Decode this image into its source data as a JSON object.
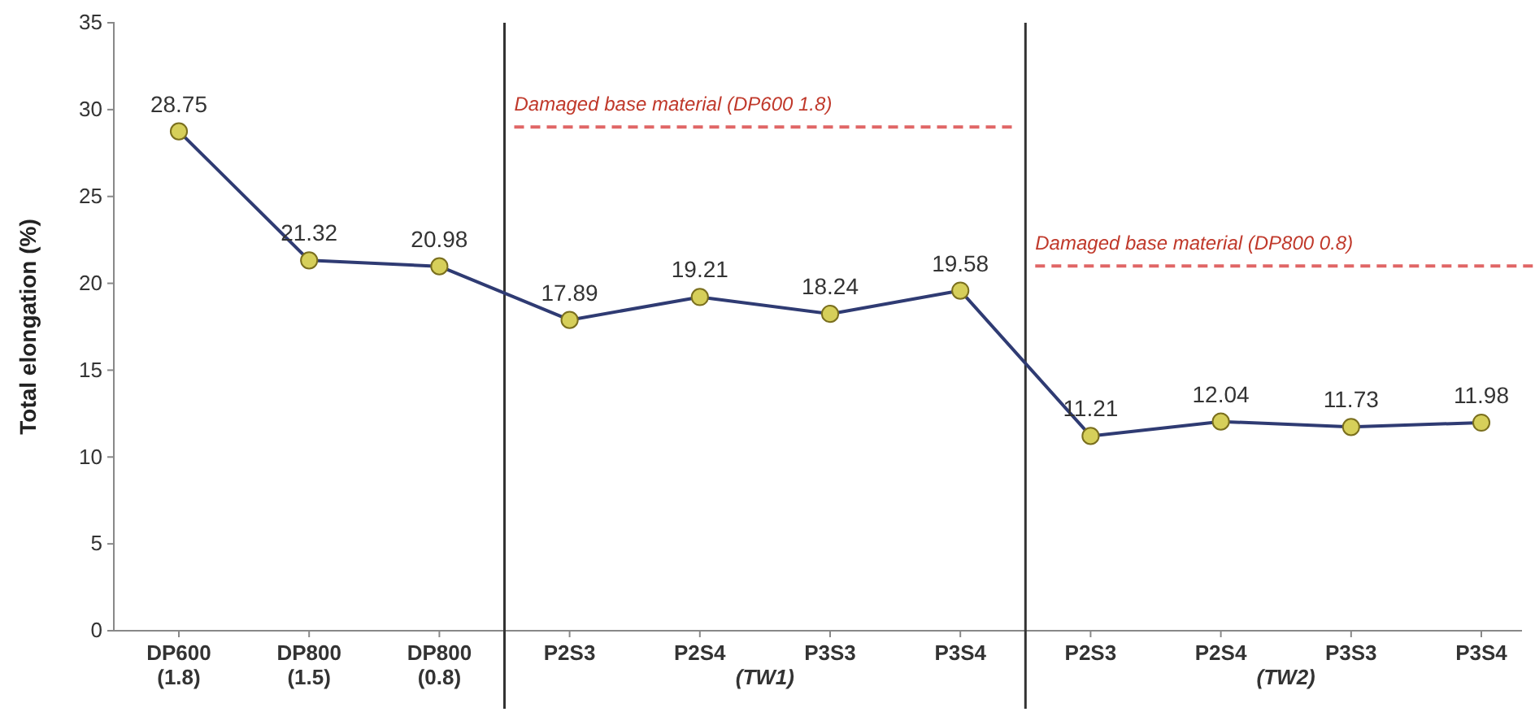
{
  "chart_data": {
    "type": "line",
    "ylabel": "Total elongation (%)",
    "categories": [
      "DP600\n(1.8)",
      "DP800\n(1.5)",
      "DP800\n(0.8)",
      "P2S3",
      "P2S4",
      "P3S3",
      "P3S4",
      "P2S3",
      "P2S4",
      "P3S3",
      "P3S4"
    ],
    "series": [
      {
        "color": "#2f3b73",
        "values": [
          28.75,
          21.32,
          20.98,
          17.89,
          19.21,
          18.24,
          19.58,
          11.21,
          12.04,
          11.73,
          11.98
        ]
      }
    ],
    "ylim": [
      0,
      35
    ],
    "yticks": [
      0,
      5,
      10,
      15,
      20,
      25,
      30,
      35
    ],
    "grid": false,
    "marker": "circle",
    "line_style": "solid",
    "data_labels": true,
    "ref_lines": [
      {
        "axis": "y",
        "value": 29,
        "label": "Damaged base material (DP600 1.8)",
        "color": "#e06666",
        "line_style": "dashed"
      },
      {
        "axis": "y",
        "value": 21,
        "label": "Damaged base material (DP800 0.8)",
        "color": "#e06666",
        "line_style": "dashed"
      }
    ],
    "annotations": [
      "(TW1)",
      "(TW2)"
    ]
  }
}
